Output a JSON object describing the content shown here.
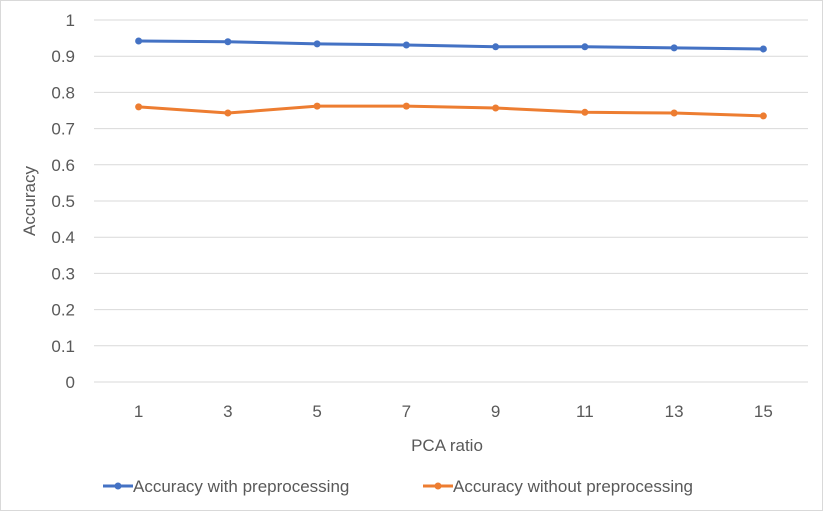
{
  "chart_data": {
    "type": "line",
    "title": "",
    "xlabel": "PCA ratio",
    "ylabel": "Accuracy",
    "categories": [
      "1",
      "3",
      "5",
      "7",
      "9",
      "11",
      "13",
      "15"
    ],
    "ylim": [
      0,
      1
    ],
    "yticks": [
      "0",
      "0.1",
      "0.2",
      "0.3",
      "0.4",
      "0.5",
      "0.6",
      "0.7",
      "0.8",
      "0.9",
      "1"
    ],
    "grid": true,
    "legend_position": "bottom",
    "series": [
      {
        "name": "Accuracy with preprocessing",
        "color": "#4472C4",
        "values": [
          0.942,
          0.94,
          0.934,
          0.931,
          0.926,
          0.926,
          0.923,
          0.92
        ]
      },
      {
        "name": "Accuracy without preprocessing",
        "color": "#ED7D31",
        "values": [
          0.76,
          0.743,
          0.762,
          0.762,
          0.757,
          0.745,
          0.743,
          0.735
        ]
      }
    ]
  }
}
